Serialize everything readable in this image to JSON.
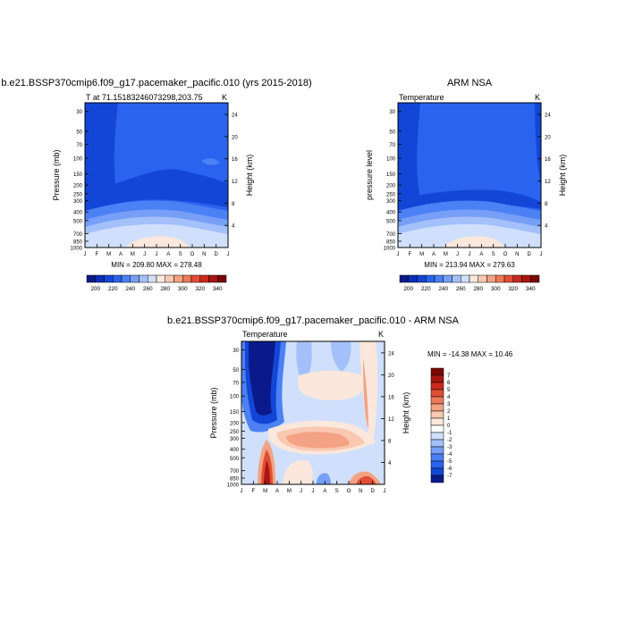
{
  "chart_data": [
    {
      "type": "heatmap",
      "id": "model",
      "title": "b.e21.BSSP370cmip6.f09_g17.pacemaker_pacific.010 (yrs 2015-2018)",
      "left_label": "T at 71.15183246073298,203.75",
      "right_label": "K",
      "ylabel": "Pressure (mb)",
      "y2label": "Height (km)",
      "x_ticks": [
        "J",
        "F",
        "M",
        "A",
        "M",
        "J",
        "J",
        "A",
        "S",
        "O",
        "N",
        "D",
        "J"
      ],
      "y_ticks": [
        30,
        50,
        70,
        100,
        150,
        200,
        250,
        300,
        400,
        500,
        700,
        850,
        1000
      ],
      "y2_ticks": [
        24,
        20,
        16,
        12,
        8,
        4
      ],
      "stats": "MIN = 209.80 MAX = 278.48",
      "colorbar": {
        "labels": [
          "200",
          "220",
          "240",
          "260",
          "280",
          "300",
          "320",
          "340"
        ],
        "colors": [
          "#0a1a8a",
          "#0d2fb5",
          "#1346d6",
          "#2a63ee",
          "#4c80f5",
          "#779ff7",
          "#a4c0fa",
          "#d0e0fc",
          "#fbe7dc",
          "#f8c8b1",
          "#f3a283",
          "#ec7a58",
          "#e04f36",
          "#c92a1e",
          "#a8170f",
          "#7a0806"
        ]
      }
    },
    {
      "type": "heatmap",
      "id": "obs",
      "title": "ARM NSA",
      "left_label": "Temperature",
      "right_label": "K",
      "ylabel": "pressure level",
      "y2label": "Height (km)",
      "x_ticks": [
        "J",
        "F",
        "M",
        "A",
        "M",
        "J",
        "J",
        "A",
        "S",
        "O",
        "N",
        "D",
        "J"
      ],
      "y_ticks": [
        30,
        50,
        70,
        100,
        150,
        200,
        250,
        300,
        400,
        500,
        700,
        850,
        1000
      ],
      "y2_ticks": [
        24,
        20,
        16,
        12,
        8,
        4
      ],
      "stats": "MIN = 213.94 MAX = 279.63",
      "colorbar": {
        "labels": [
          "200",
          "220",
          "240",
          "260",
          "280",
          "300",
          "320",
          "340"
        ],
        "colors": [
          "#0a1a8a",
          "#0d2fb5",
          "#1346d6",
          "#2a63ee",
          "#4c80f5",
          "#779ff7",
          "#a4c0fa",
          "#d0e0fc",
          "#fbe7dc",
          "#f8c8b1",
          "#f3a283",
          "#ec7a58",
          "#e04f36",
          "#c92a1e",
          "#a8170f",
          "#7a0806"
        ]
      }
    },
    {
      "type": "heatmap",
      "id": "diff",
      "title": "b.e21.BSSP370cmip6.f09_g17.pacemaker_pacific.010 - ARM NSA",
      "left_label": "Temperature",
      "right_label": "K",
      "ylabel": "Pressure (mb)",
      "y2label": "Height (km)",
      "x_ticks": [
        "J",
        "F",
        "M",
        "A",
        "M",
        "J",
        "J",
        "A",
        "S",
        "O",
        "N",
        "D",
        "J"
      ],
      "y_ticks": [
        30,
        50,
        70,
        100,
        150,
        200,
        250,
        300,
        400,
        500,
        700,
        850,
        1000
      ],
      "y2_ticks": [
        24,
        20,
        16,
        12,
        8,
        4
      ],
      "stats": "MIN = -14.38 MAX =  10.46",
      "colorbar": {
        "labels": [
          "7",
          "6",
          "5",
          "4",
          "3",
          "2",
          "1",
          "0",
          "-1",
          "-2",
          "-3",
          "-4",
          "-5",
          "-6",
          "-7"
        ],
        "colors": [
          "#7a0806",
          "#a8170f",
          "#c92a1e",
          "#e04f36",
          "#ec7a58",
          "#f3a283",
          "#f8c8b1",
          "#fbe7dc",
          "#ffffff",
          "#d0e0fc",
          "#a4c0fa",
          "#779ff7",
          "#4c80f5",
          "#2a63ee",
          "#1346d6",
          "#0a1a8a"
        ]
      }
    }
  ]
}
